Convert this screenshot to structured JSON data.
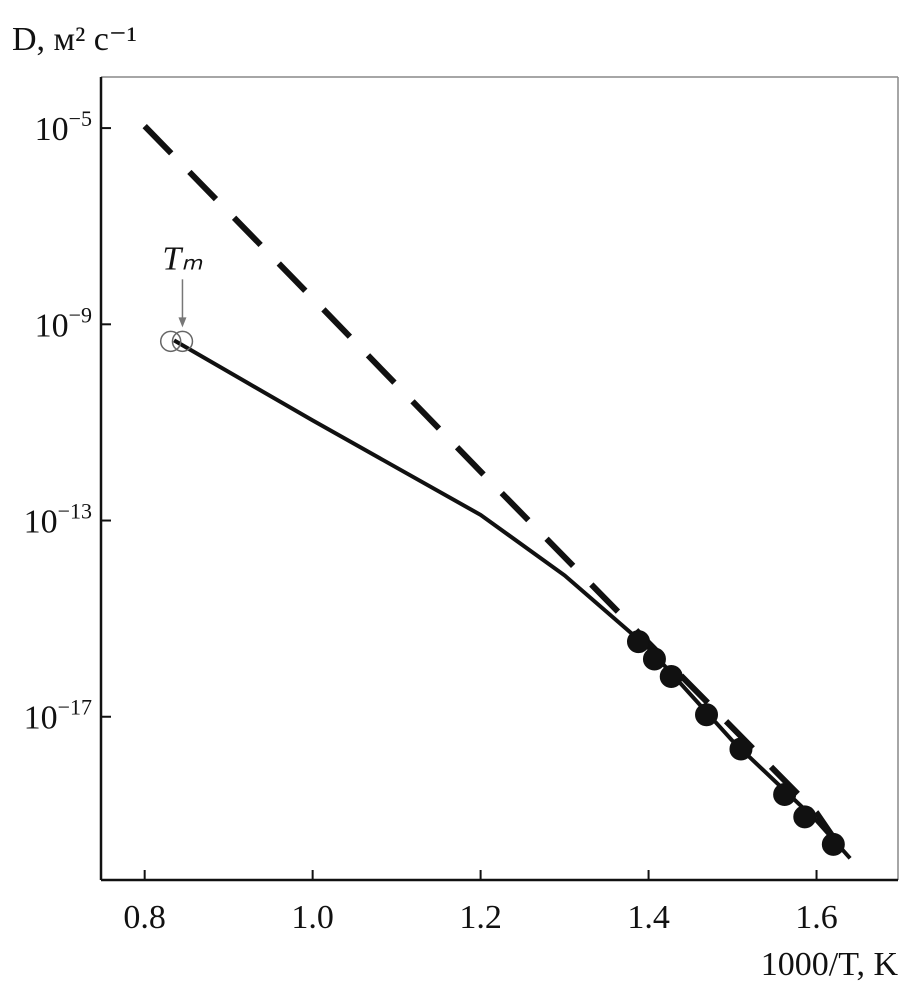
{
  "chart_data": {
    "type": "line",
    "y_label": "D, м² с⁻¹",
    "x_label": "1000/T, K",
    "annotation": "Tₘ",
    "xlim": [
      0.748,
      1.697
    ],
    "xticks": [
      0.8,
      {
        "value": 1,
        "label": "1.0"
      },
      1.2,
      1.4,
      1.6
    ],
    "ylim": [
      4.7e-21,
      0.00011
    ],
    "yscale": "log",
    "yticks": [
      {
        "value": 1e-05,
        "label": "10−5"
      },
      {
        "value": 1e-09,
        "label": "10−9"
      },
      {
        "value": 1e-13,
        "label": "10−13"
      },
      {
        "value": 1e-17,
        "label": "10−17"
      }
    ],
    "series": [
      {
        "style": "dashed",
        "color": "#111111",
        "x": [
          0.8,
          1.0,
          1.2,
          1.4,
          1.6,
          1.64
        ],
        "values": [
          1.1e-05,
          3.4e-09,
          1e-12,
          3.2e-16,
          1.1e-19,
          1.1e-20
        ]
      },
      {
        "style": "solid",
        "color": "#111111",
        "x": [
          0.835,
          1.0,
          1.2,
          1.3,
          1.4,
          1.5,
          1.6,
          1.64
        ],
        "values": [
          4.7e-10,
          1.1e-11,
          1.3e-13,
          7.6e-15,
          2.5e-16,
          3.2e-18,
          7.6e-20,
          1.3e-20
        ]
      },
      {
        "style": "filled-circle",
        "color": "#111111",
        "x": [
          1.388,
          1.407,
          1.427,
          1.469,
          1.51,
          1.562,
          1.586,
          1.62
        ],
        "values": [
          3.4e-16,
          1.5e-16,
          6.6e-17,
          1.1e-17,
          2.2e-18,
          2.6e-19,
          9.1e-20,
          2.5e-20
        ]
      },
      {
        "style": "open-circle",
        "color": "#666666",
        "x": [
          0.831,
          0.845
        ],
        "values": [
          4.5e-10,
          4.5e-10
        ]
      }
    ]
  }
}
